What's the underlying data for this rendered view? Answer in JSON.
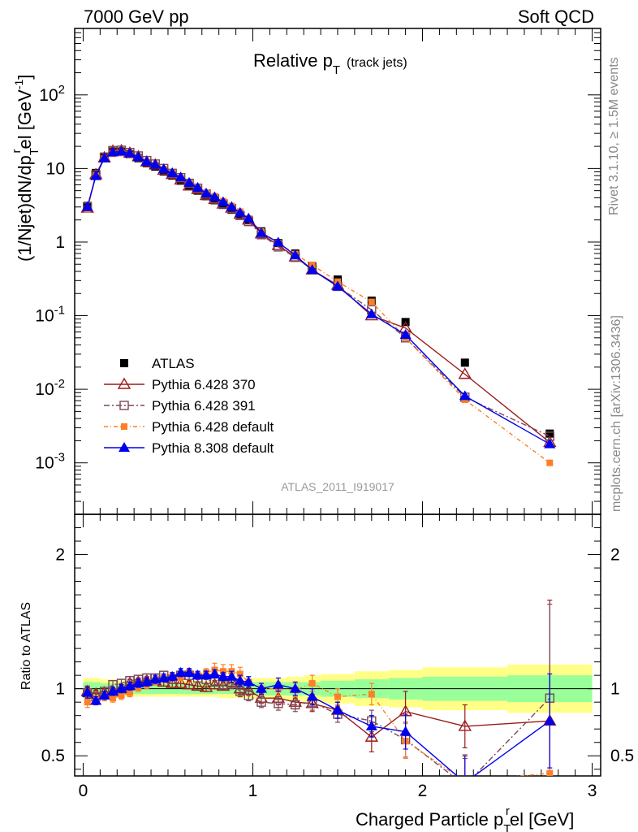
{
  "header": {
    "left": "7000 GeV pp",
    "right": "Soft QCD"
  },
  "side_text": {
    "top": "Rivet 3.1.10, ≥ 1.5M events",
    "bottom": "mcplots.cern.ch [arXiv:1306.3436]"
  },
  "colors": {
    "ATLAS": "#000000",
    "Pythia 6.428 370": "#9b1b1b",
    "Pythia 6.428 391": "#7a4a55",
    "Pythia 6.428 default": "#ff7f24",
    "Pythia 8.308 default": "#0000ee",
    "band_inner": "#99ff99",
    "band_outer": "#ffff88"
  },
  "chart_data": [
    {
      "type": "line",
      "title_main": "Relative p",
      "title_sub": "T",
      "title_suffix": "(track jets)",
      "ylabel": "(1/Njet)dN/dp",
      "ylabel_sub": "T",
      "ylabel_sup": "r",
      "ylabel_tail": "el [GeV",
      "ylabel_exp": "-1",
      "ylabel_close": "]",
      "yscale": "log",
      "ylim": [
        0.0002,
        800
      ],
      "xlim": [
        -0.05,
        3.05
      ],
      "yticks": [
        {
          "value": 0.001,
          "base": "10",
          "exp": "-3"
        },
        {
          "value": 0.01,
          "base": "10",
          "exp": "-2"
        },
        {
          "value": 0.1,
          "base": "10",
          "exp": "-1"
        },
        {
          "value": 1,
          "base": "1",
          "exp": ""
        },
        {
          "value": 10,
          "base": "10",
          "exp": ""
        },
        {
          "value": 100,
          "base": "10",
          "exp": "2"
        }
      ],
      "watermark": "ATLAS_2011_I919017",
      "legend_position": "bottom-left",
      "x": [
        0.025,
        0.075,
        0.125,
        0.175,
        0.225,
        0.275,
        0.325,
        0.375,
        0.425,
        0.475,
        0.525,
        0.575,
        0.625,
        0.675,
        0.725,
        0.775,
        0.825,
        0.875,
        0.925,
        0.975,
        1.05,
        1.15,
        1.25,
        1.35,
        1.5,
        1.7,
        1.9,
        2.25,
        2.75
      ],
      "series": [
        {
          "name": "ATLAS",
          "marker": "square-filled",
          "values": [
            3.1,
            8.7,
            14.5,
            17.0,
            17.0,
            15.6,
            13.8,
            11.8,
            10.6,
            9.1,
            8.0,
            6.8,
            5.7,
            5.0,
            4.2,
            3.7,
            3.2,
            2.75,
            2.35,
            2.0,
            1.4,
            0.97,
            0.7,
            0.47,
            0.31,
            0.16,
            0.082,
            0.023,
            0.0025
          ]
        },
        {
          "name": "Pythia 6.428 370",
          "marker": "triangle-open",
          "dash": "",
          "values": [
            2.9,
            8.3,
            14.0,
            17.3,
            17.5,
            16.2,
            14.5,
            12.3,
            11.2,
            9.5,
            8.3,
            7.0,
            5.8,
            5.2,
            4.3,
            3.8,
            3.3,
            2.9,
            2.4,
            2.0,
            1.3,
            0.9,
            0.63,
            0.42,
            0.26,
            0.1,
            0.068,
            0.016,
            0.0019
          ]
        },
        {
          "name": "Pythia 6.428 391",
          "marker": "square-open",
          "dash": "7,3,2,3",
          "values": [
            3.0,
            8.2,
            14.2,
            17.5,
            17.7,
            16.5,
            14.8,
            12.8,
            11.5,
            10.0,
            8.6,
            7.5,
            6.3,
            5.4,
            4.5,
            3.9,
            3.3,
            2.85,
            2.3,
            1.9,
            1.26,
            0.86,
            0.62,
            0.42,
            0.25,
            0.12,
            0.05,
            0.0078,
            0.0023
          ]
        },
        {
          "name": "Pythia 6.428 default",
          "marker": "square-small",
          "dash": "5,3,1,3",
          "values": [
            2.8,
            8.0,
            13.6,
            15.8,
            16.2,
            15.2,
            13.9,
            12.2,
            11.2,
            9.8,
            8.7,
            7.4,
            6.4,
            5.5,
            4.7,
            4.2,
            3.6,
            3.1,
            2.6,
            2.1,
            1.39,
            0.97,
            0.69,
            0.49,
            0.29,
            0.154,
            0.05,
            0.0072,
            0.001
          ]
        },
        {
          "name": "Pythia 8.308 default",
          "marker": "triangle-filled",
          "dash": "",
          "values": [
            3.0,
            7.9,
            13.8,
            16.6,
            17.0,
            16.0,
            14.3,
            12.4,
            11.3,
            9.8,
            8.7,
            7.6,
            6.4,
            5.5,
            4.6,
            4.1,
            3.5,
            3.0,
            2.5,
            2.1,
            1.33,
            0.99,
            0.66,
            0.42,
            0.25,
            0.105,
            0.055,
            0.0081,
            0.0018
          ]
        }
      ]
    },
    {
      "type": "line",
      "ylabel": "Ratio to ATLAS",
      "xlabel": "Charged Particle p",
      "xlabel_sub": "T",
      "xlabel_sup": "r",
      "xlabel_tail": "el [GeV]",
      "ylim": [
        0.35,
        2.3
      ],
      "xlim": [
        -0.05,
        3.05
      ],
      "xticks": [
        "0",
        "1",
        "2",
        "3"
      ],
      "yticks": [
        "0.5",
        "1",
        "2"
      ],
      "bands": {
        "edges": [
          0.0,
          0.1,
          0.2,
          0.3,
          0.4,
          0.5,
          0.6,
          0.7,
          0.8,
          0.9,
          1.0,
          1.1,
          1.2,
          1.3,
          1.4,
          1.6,
          1.8,
          2.0,
          2.5,
          3.0
        ],
        "inner": [
          0.05,
          0.04,
          0.04,
          0.04,
          0.04,
          0.04,
          0.04,
          0.04,
          0.04,
          0.04,
          0.05,
          0.05,
          0.05,
          0.05,
          0.06,
          0.07,
          0.08,
          0.09,
          0.1,
          0.6
        ],
        "outer": [
          0.08,
          0.07,
          0.06,
          0.06,
          0.06,
          0.06,
          0.06,
          0.06,
          0.07,
          0.07,
          0.08,
          0.08,
          0.09,
          0.1,
          0.11,
          0.13,
          0.14,
          0.16,
          0.18,
          1.0
        ]
      },
      "series": [
        {
          "name": "Pythia 6.428 370",
          "marker": "triangle-open",
          "dash": "",
          "values": [
            0.98,
            0.96,
            0.97,
            0.98,
            1.0,
            1.04,
            1.05,
            1.06,
            1.06,
            1.05,
            1.04,
            1.04,
            1.03,
            1.02,
            1.01,
            1.03,
            1.02,
            1.05,
            1.0,
            0.99,
            0.93,
            0.93,
            0.9,
            0.89,
            0.84,
            0.64,
            0.83,
            0.72,
            0.76
          ],
          "errors": [
            0.04,
            0.03,
            0.03,
            0.03,
            0.03,
            0.03,
            0.03,
            0.03,
            0.03,
            0.03,
            0.03,
            0.03,
            0.03,
            0.03,
            0.03,
            0.03,
            0.03,
            0.04,
            0.04,
            0.04,
            0.04,
            0.05,
            0.05,
            0.06,
            0.06,
            0.11,
            0.15,
            0.16,
            0.9
          ]
        },
        {
          "name": "Pythia 6.428 391",
          "marker": "square-open",
          "dash": "7,3,2,3",
          "values": [
            0.97,
            0.94,
            0.98,
            1.03,
            1.04,
            1.06,
            1.07,
            1.08,
            1.08,
            1.1,
            1.07,
            1.1,
            1.1,
            1.08,
            1.07,
            1.05,
            1.03,
            1.04,
            0.98,
            0.95,
            0.9,
            0.89,
            0.88,
            0.9,
            0.81,
            0.76,
            0.62,
            0.28,
            0.93
          ],
          "errors": [
            0.04,
            0.03,
            0.03,
            0.03,
            0.03,
            0.03,
            0.03,
            0.03,
            0.03,
            0.03,
            0.03,
            0.03,
            0.03,
            0.03,
            0.03,
            0.03,
            0.03,
            0.04,
            0.04,
            0.04,
            0.04,
            0.05,
            0.05,
            0.06,
            0.06,
            0.08,
            0.13,
            0.2,
            0.7
          ]
        },
        {
          "name": "Pythia 6.428 default",
          "marker": "square-small",
          "dash": "5,3,1,3",
          "values": [
            0.9,
            0.92,
            0.94,
            0.93,
            0.95,
            0.97,
            1.01,
            1.03,
            1.06,
            1.08,
            1.09,
            1.09,
            1.12,
            1.1,
            1.12,
            1.14,
            1.13,
            1.13,
            1.11,
            1.05,
            1.0,
            1.0,
            0.99,
            1.04,
            0.94,
            0.96,
            0.61,
            0.31,
            0.37
          ],
          "errors": [
            0.04,
            0.03,
            0.03,
            0.03,
            0.03,
            0.03,
            0.03,
            0.03,
            0.03,
            0.03,
            0.03,
            0.03,
            0.03,
            0.03,
            0.03,
            0.05,
            0.05,
            0.05,
            0.05,
            0.04,
            0.04,
            0.05,
            0.05,
            0.06,
            0.06,
            0.08,
            0.13,
            0.2,
            0.4
          ]
        },
        {
          "name": "Pythia 8.308 default",
          "marker": "triangle-filled",
          "dash": "",
          "values": [
            0.97,
            0.91,
            0.95,
            0.98,
            1.0,
            1.02,
            1.04,
            1.05,
            1.07,
            1.08,
            1.09,
            1.12,
            1.12,
            1.1,
            1.1,
            1.11,
            1.09,
            1.09,
            1.06,
            1.05,
            1.0,
            1.03,
            1.0,
            0.94,
            0.84,
            0.72,
            0.68,
            0.3,
            0.76
          ],
          "errors": [
            0.04,
            0.03,
            0.03,
            0.03,
            0.03,
            0.03,
            0.03,
            0.03,
            0.03,
            0.03,
            0.03,
            0.03,
            0.03,
            0.03,
            0.03,
            0.03,
            0.03,
            0.04,
            0.04,
            0.04,
            0.04,
            0.05,
            0.05,
            0.06,
            0.06,
            0.08,
            0.13,
            0.2,
            0.35
          ]
        }
      ]
    }
  ]
}
